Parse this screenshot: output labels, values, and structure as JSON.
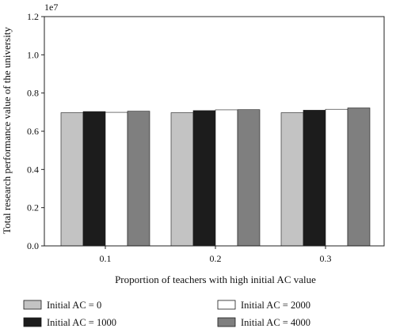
{
  "chart_data": {
    "type": "bar",
    "title": "",
    "xlabel": "Proportion of teachers with high initial AC value",
    "ylabel": "Total research performance value of the university",
    "y_multiplier_label": "1e7",
    "ylim": [
      0,
      1.2
    ],
    "yticks": [
      "0.0",
      "0.2",
      "0.4",
      "0.6",
      "0.8",
      "1.0",
      "1.2"
    ],
    "grid": false,
    "legend_position": "bottom",
    "categories": [
      "0.1",
      "0.2",
      "0.3"
    ],
    "series": [
      {
        "name": "Initial AC = 0",
        "color": "#c3c3c3",
        "values": [
          0.697,
          0.697,
          0.697
        ]
      },
      {
        "name": "Initial AC = 1000",
        "color": "#1c1c1c",
        "values": [
          0.703,
          0.708,
          0.71
        ]
      },
      {
        "name": "Initial AC = 2000",
        "color": "#ffffff",
        "values": [
          0.699,
          0.712,
          0.715
        ]
      },
      {
        "name": "Initial AC = 4000",
        "color": "#7f7f7f",
        "values": [
          0.705,
          0.713,
          0.722
        ]
      }
    ]
  }
}
